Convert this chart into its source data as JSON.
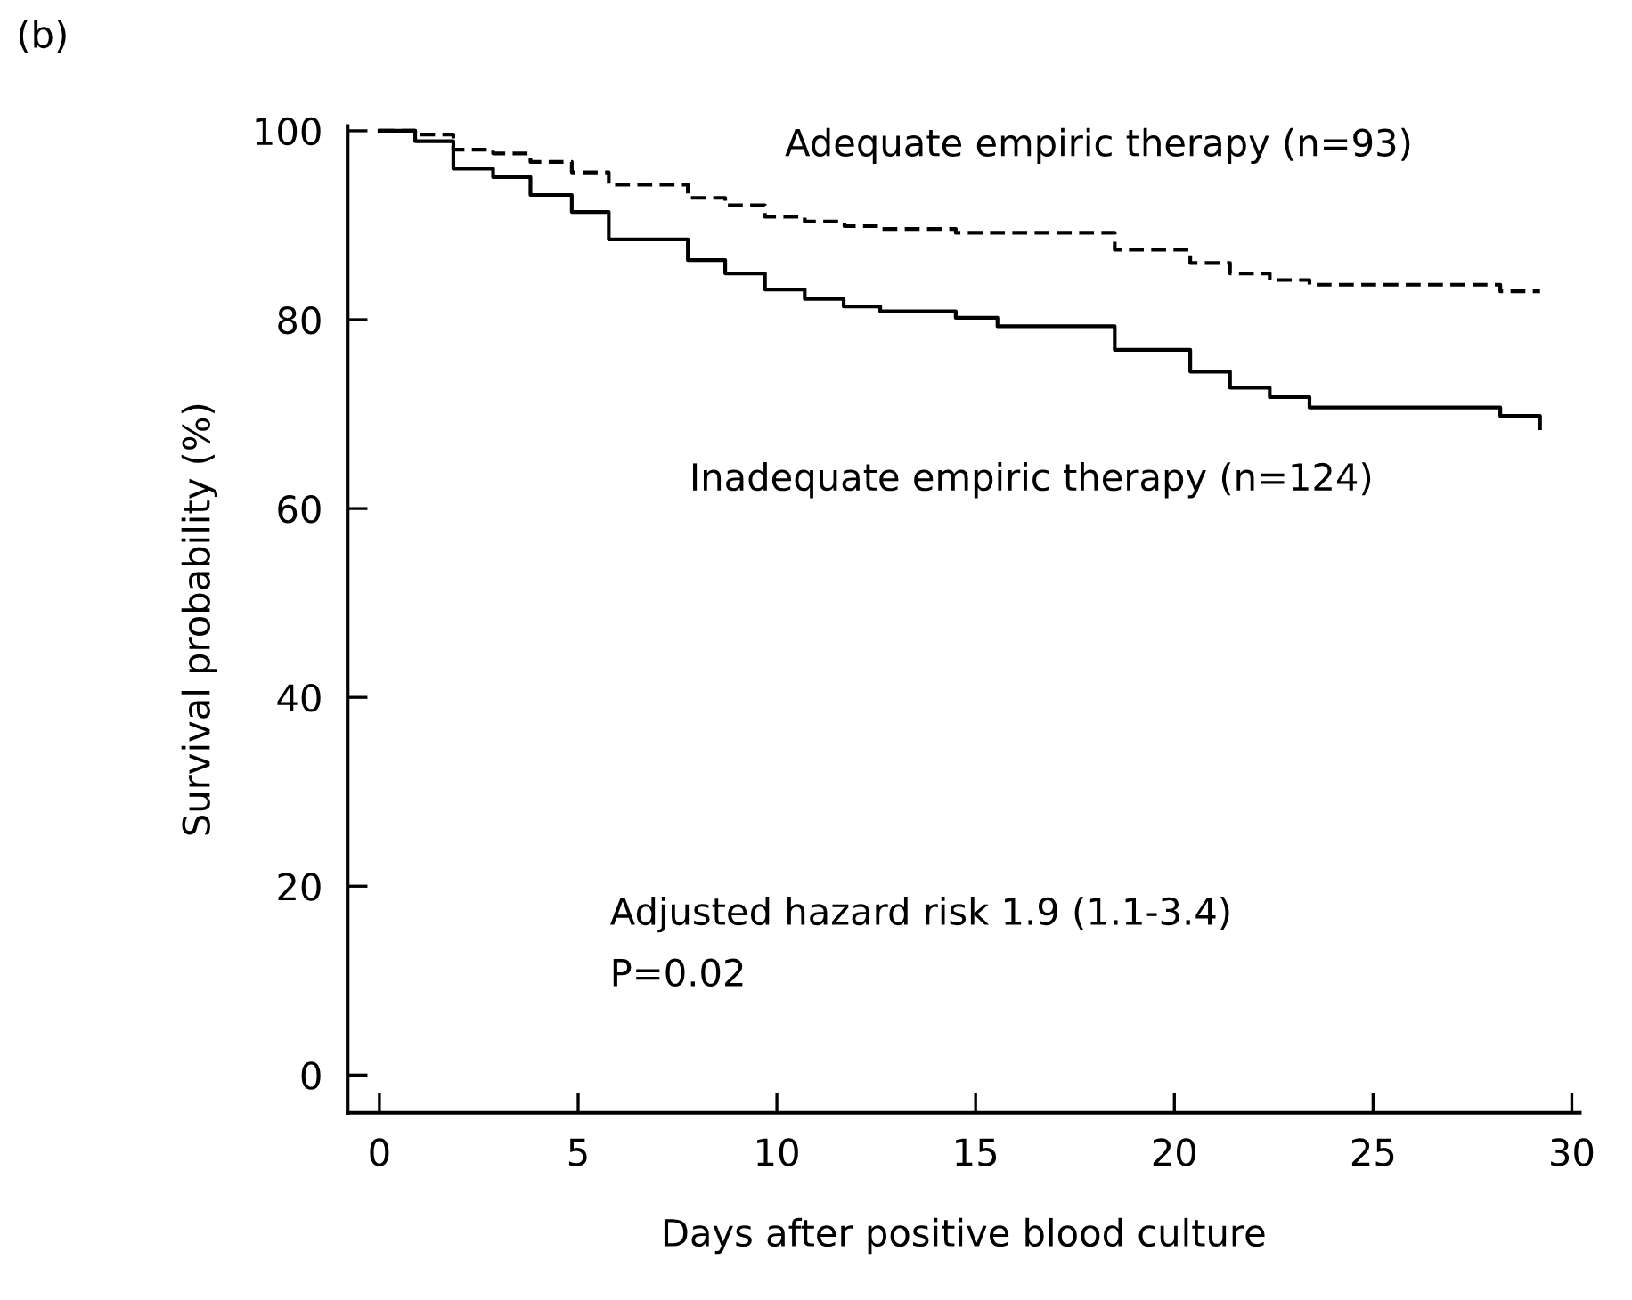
{
  "chart_data": {
    "type": "step",
    "xlabel": "Days after positive blood culture",
    "ylabel": "Survival probability (%)",
    "xlim": [
      -0.8,
      30.2
    ],
    "ylim": [
      -4,
      100.5
    ],
    "xticks": [
      0,
      5,
      10,
      15,
      20,
      25,
      30
    ],
    "yticks": [
      0,
      20,
      40,
      60,
      80,
      100
    ],
    "grid": false,
    "legend": false,
    "marker": "none",
    "series": [
      {
        "name": "Adequate empiric therapy (n=93)",
        "color": "#000000",
        "line_style": "dashed",
        "x": [
          0,
          0.9,
          1.86,
          2.86,
          3.8,
          4.84,
          5.77,
          7.76,
          8.7,
          9.7,
          10.7,
          11.7,
          12.6,
          14.5,
          18.5,
          20.4,
          21.4,
          22.4,
          23.4,
          28.2,
          29.2
        ],
        "values": [
          100,
          99.6,
          98.0,
          97.6,
          96.7,
          95.6,
          94.3,
          92.9,
          92.1,
          90.9,
          90.4,
          89.9,
          89.6,
          89.2,
          87.4,
          86.0,
          84.9,
          84.2,
          83.7,
          83.0,
          83.0
        ]
      },
      {
        "name": "Inadequate empiric therapy (n=124)",
        "color": "#000000",
        "line_style": "solid",
        "x": [
          0,
          0.9,
          1.86,
          2.86,
          3.8,
          4.84,
          5.77,
          7.76,
          8.7,
          9.7,
          10.7,
          11.68,
          12.6,
          14.5,
          15.55,
          18.5,
          20.4,
          21.4,
          22.4,
          23.4,
          28.2,
          29.2
        ],
        "values": [
          100,
          98.9,
          96.0,
          95.1,
          93.2,
          91.4,
          88.5,
          86.3,
          84.9,
          83.2,
          82.2,
          81.4,
          80.9,
          80.2,
          79.3,
          76.8,
          74.5,
          72.8,
          71.8,
          70.7,
          69.8,
          68.5
        ]
      }
    ],
    "annotations": [
      "(b)",
      "Adjusted hazard risk 1.9 (1.1-3.4)",
      "P=0.02"
    ]
  }
}
